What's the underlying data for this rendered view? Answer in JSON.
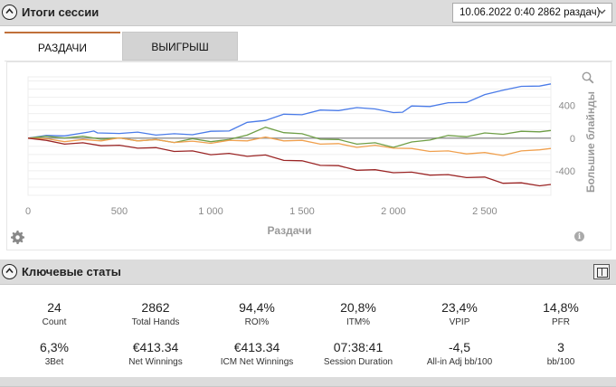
{
  "session_section": {
    "title": "Итоги сессии",
    "session_selector": "10.06.2022 0:40 2862 раздач)"
  },
  "tabs": [
    {
      "label": "РАЗДАЧИ",
      "active": true
    },
    {
      "label": "ВЫИГРЫШ",
      "active": false
    }
  ],
  "chart_data": {
    "type": "line",
    "xlabel": "Раздачи",
    "ylabel": "Большие блайнды",
    "xlim": [
      0,
      2862
    ],
    "ylim": [
      -700,
      750
    ],
    "x_ticks": [
      0,
      500,
      1000,
      1500,
      2000,
      2500
    ],
    "x_tick_labels": [
      "0",
      "500",
      "1 000",
      "1 500",
      "2 000",
      "2 500"
    ],
    "y_ticks": [
      400,
      0,
      -400
    ],
    "y_tick_labels": [
      "400",
      "0",
      "-400"
    ],
    "grid": true,
    "series": [
      {
        "color": "#4a7be8",
        "x": [
          0,
          100,
          200,
          330,
          360,
          380,
          500,
          600,
          700,
          800,
          900,
          1000,
          1100,
          1200,
          1300,
          1400,
          1500,
          1600,
          1700,
          1800,
          1900,
          2000,
          2050,
          2100,
          2200,
          2300,
          2400,
          2500,
          2600,
          2700,
          2800,
          2862
        ],
        "y": [
          0,
          20,
          40,
          60,
          100,
          50,
          70,
          60,
          50,
          40,
          55,
          70,
          100,
          180,
          230,
          280,
          300,
          330,
          350,
          360,
          370,
          300,
          330,
          380,
          400,
          420,
          450,
          520,
          600,
          620,
          650,
          650
        ]
      },
      {
        "color": "#6e9e45",
        "x": [
          0,
          100,
          200,
          300,
          400,
          500,
          600,
          700,
          800,
          900,
          1000,
          1100,
          1200,
          1300,
          1400,
          1500,
          1600,
          1700,
          1800,
          1900,
          2000,
          2100,
          2200,
          2300,
          2400,
          2500,
          2600,
          2700,
          2800,
          2862
        ],
        "y": [
          0,
          10,
          15,
          10,
          0,
          -10,
          -20,
          -30,
          -40,
          -20,
          -30,
          -30,
          50,
          120,
          80,
          40,
          0,
          -30,
          -60,
          -70,
          -100,
          -60,
          -10,
          20,
          30,
          50,
          60,
          70,
          90,
          80
        ]
      },
      {
        "color": "#f0a04e",
        "x": [
          0,
          100,
          200,
          300,
          400,
          500,
          600,
          700,
          800,
          900,
          1000,
          1100,
          1200,
          1300,
          1400,
          1500,
          1600,
          1700,
          1800,
          1900,
          2000,
          2100,
          2200,
          2300,
          2400,
          2500,
          2600,
          2700,
          2800,
          2862
        ],
        "y": [
          0,
          -20,
          -30,
          -30,
          -20,
          -10,
          -20,
          -30,
          -40,
          -50,
          -50,
          -40,
          -20,
          0,
          -20,
          -40,
          -60,
          -80,
          -100,
          -100,
          -110,
          -140,
          -150,
          -170,
          -180,
          -190,
          -200,
          -170,
          -130,
          -140
        ]
      },
      {
        "color": "#9a2424",
        "x": [
          0,
          100,
          200,
          300,
          400,
          500,
          600,
          700,
          800,
          900,
          1000,
          1100,
          1200,
          1300,
          1400,
          1500,
          1600,
          1700,
          1800,
          1900,
          2000,
          2100,
          2200,
          2300,
          2400,
          2500,
          2600,
          2700,
          2800,
          2862
        ],
        "y": [
          0,
          -40,
          -60,
          -70,
          -80,
          -100,
          -110,
          -130,
          -150,
          -170,
          -190,
          -200,
          -210,
          -220,
          -260,
          -290,
          -320,
          -350,
          -380,
          -400,
          -410,
          -430,
          -440,
          -460,
          -470,
          -490,
          -540,
          -560,
          -570,
          -580
        ]
      }
    ]
  },
  "stats_section": {
    "title": "Ключевые статы"
  },
  "stats": [
    {
      "value": "24",
      "label": "Count"
    },
    {
      "value": "2862",
      "label": "Total Hands"
    },
    {
      "value": "94,4%",
      "label": "ROI%"
    },
    {
      "value": "20,8%",
      "label": "ITM%"
    },
    {
      "value": "23,4%",
      "label": "VPIP"
    },
    {
      "value": "14,8%",
      "label": "PFR"
    },
    {
      "value": "6,3%",
      "label": "3Bet"
    },
    {
      "value": "€413.34",
      "label": "Net Winnings"
    },
    {
      "value": "€413.34",
      "label": "ICM Net Winnings"
    },
    {
      "value": "07:38:41",
      "label": "Session Duration"
    },
    {
      "value": "-4,5",
      "label": "All-in Adj bb/100"
    },
    {
      "value": "3",
      "label": "bb/100"
    }
  ],
  "colors": {
    "header_bg": "#dcdcdc",
    "tab_accent": "#c0703a"
  }
}
